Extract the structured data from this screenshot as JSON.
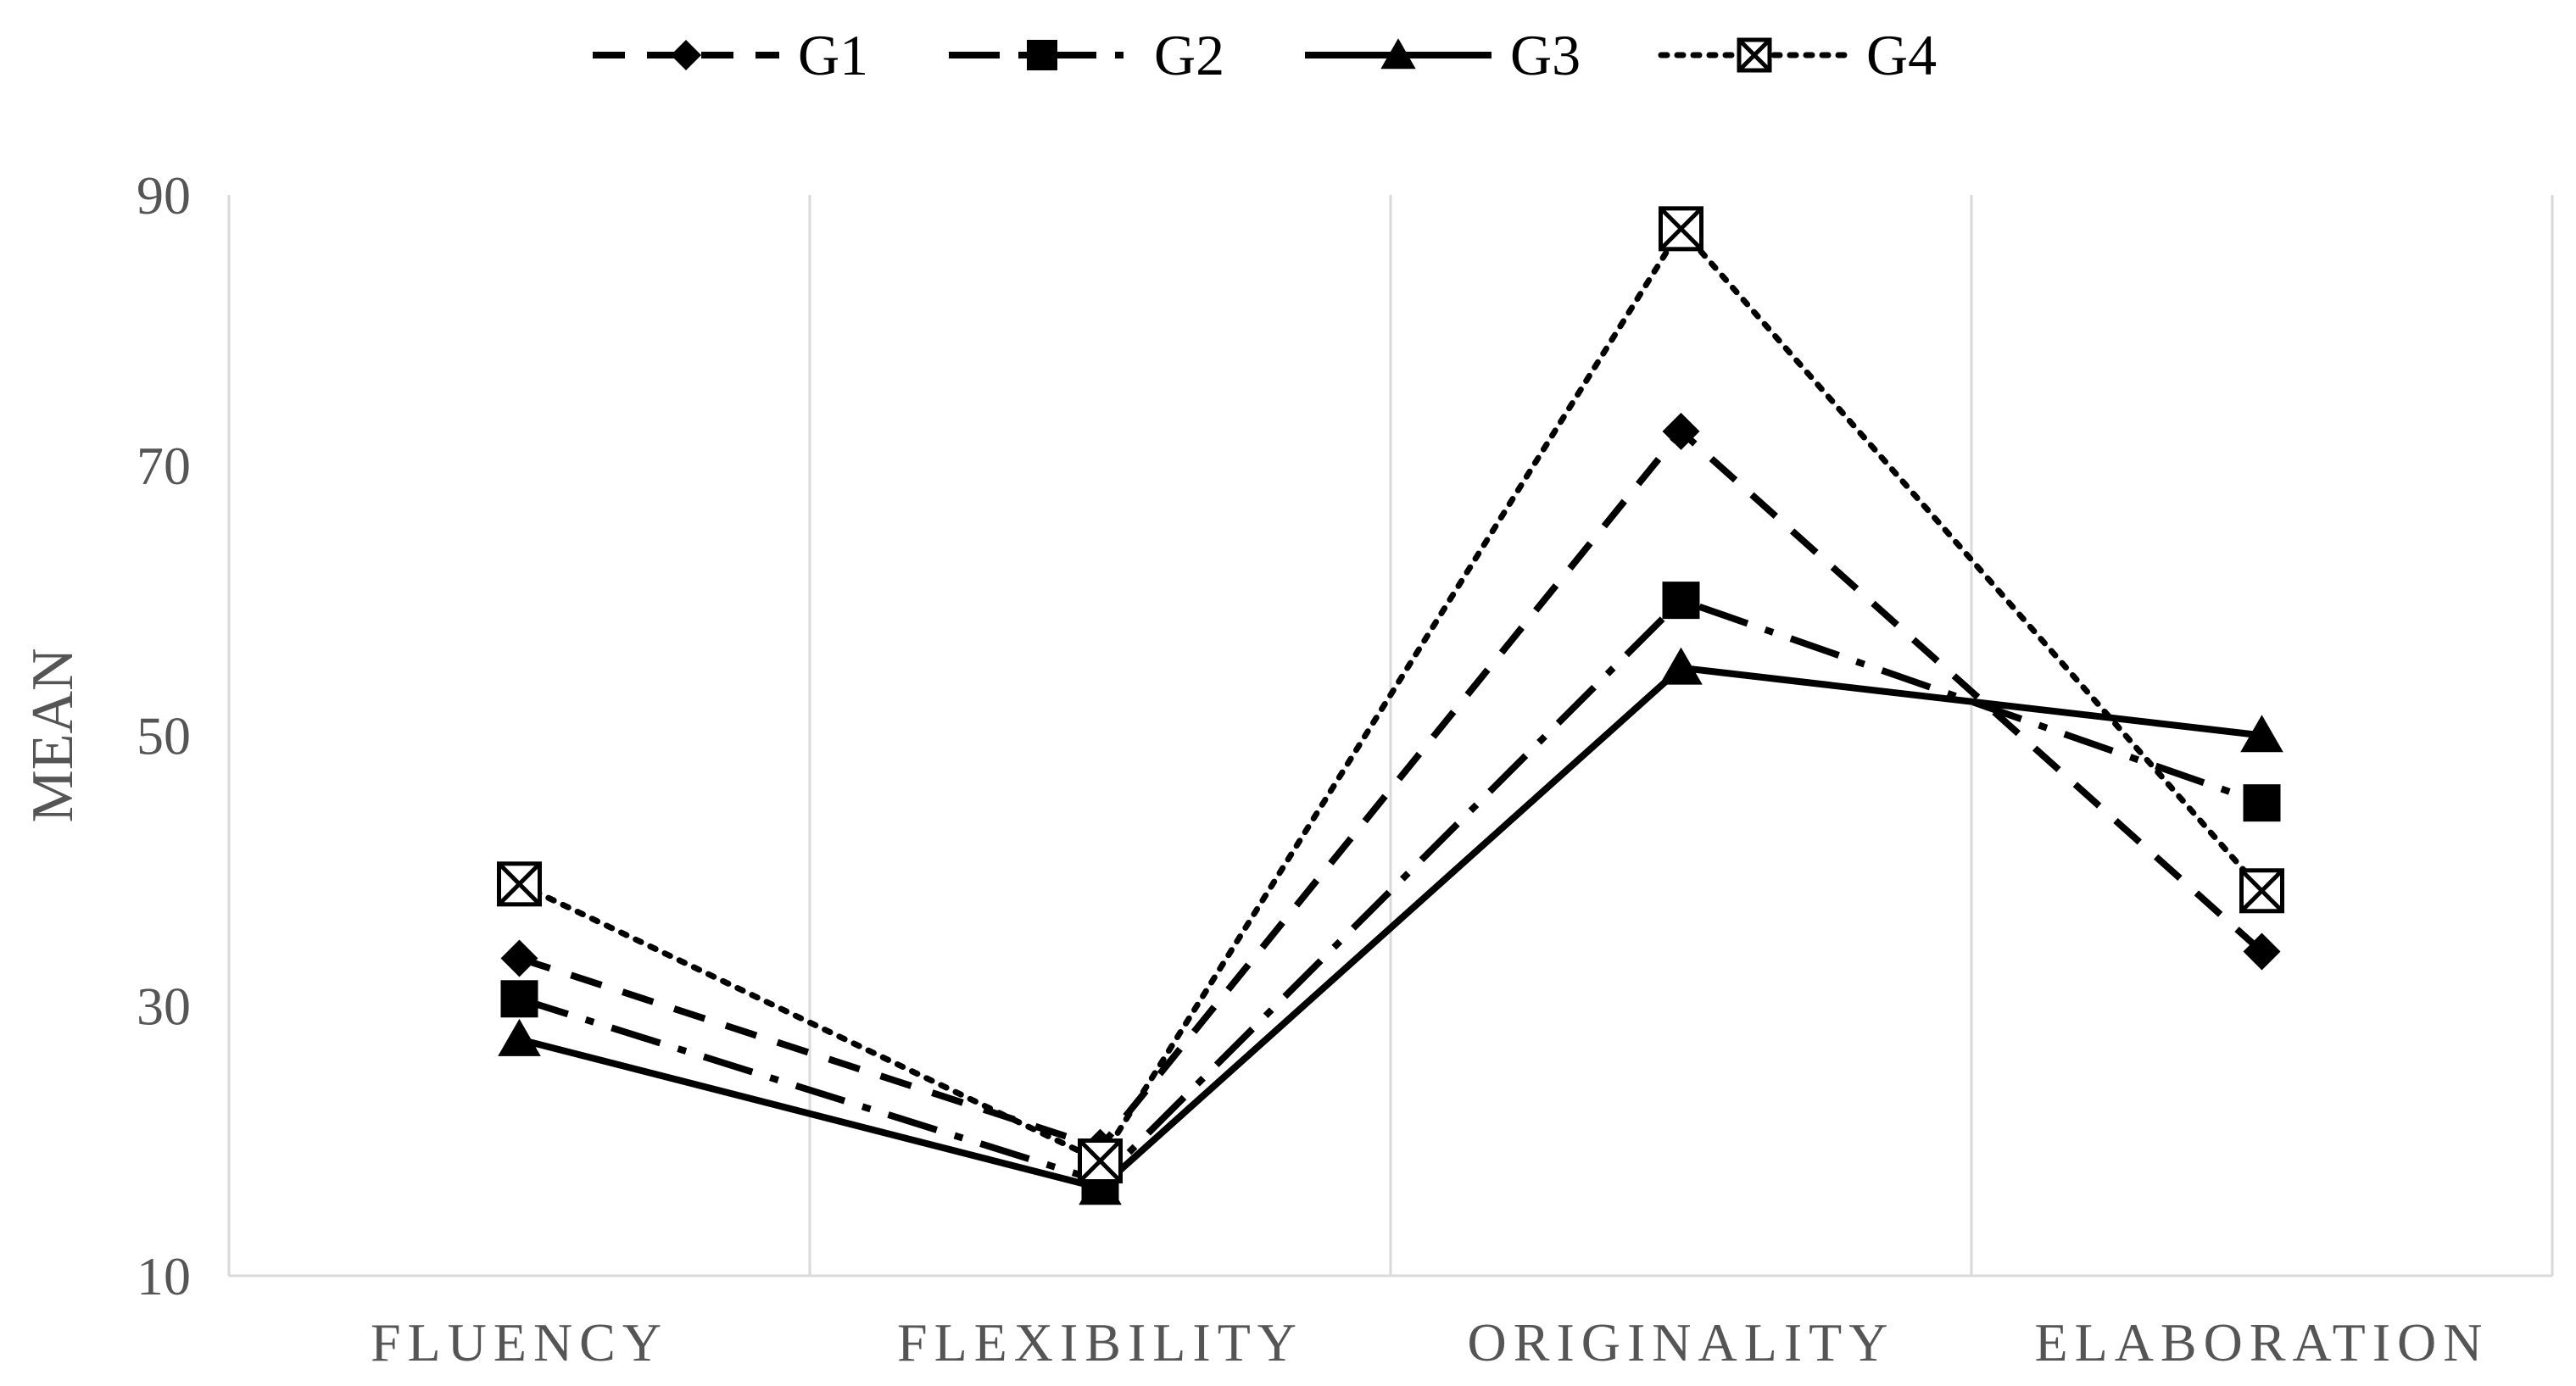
{
  "chart_data": {
    "type": "line",
    "title": "",
    "xlabel": "",
    "ylabel": "MEAN",
    "ylim": [
      10,
      90
    ],
    "y_ticks": [
      10,
      30,
      50,
      70,
      90
    ],
    "y_tick_labels": [
      "10",
      "30",
      "50",
      "70",
      "90"
    ],
    "categories": [
      "FLUENCY",
      "FLEXIBILITY",
      "ORIGINALITY",
      "ELABORATION"
    ],
    "grid": "vertical category separators",
    "legend_position": "top-center",
    "series": [
      {
        "name": "G1",
        "values": [
          33.5,
          19.5,
          72.5,
          34
        ],
        "line_style": "dashed",
        "marker": "diamond",
        "color": "#000000"
      },
      {
        "name": "G2",
        "values": [
          30.5,
          17,
          60,
          45
        ],
        "line_style": "dash-dot",
        "marker": "square",
        "color": "#000000"
      },
      {
        "name": "G3",
        "values": [
          27.5,
          16.5,
          55,
          50
        ],
        "line_style": "solid",
        "marker": "triangle",
        "color": "#000000"
      },
      {
        "name": "G4",
        "values": [
          39,
          18.5,
          87.5,
          38.5
        ],
        "line_style": "dotted",
        "marker": "boxed-x",
        "color": "#000000"
      }
    ]
  }
}
